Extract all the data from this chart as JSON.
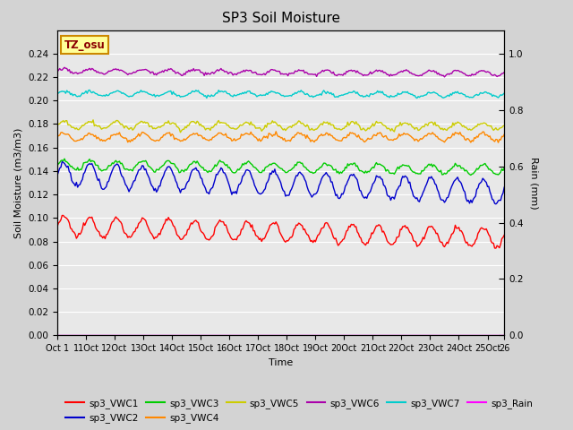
{
  "title": "SP3 Soil Moisture",
  "xlabel": "Time",
  "ylabel_left": "Soil Moisture (m3/m3)",
  "ylabel_right": "Rain (mm)",
  "num_points": 375,
  "ylim_left": [
    0.0,
    0.26
  ],
  "ylim_right": [
    0.0,
    1.0833
  ],
  "yticks_left": [
    0.0,
    0.02,
    0.04,
    0.06,
    0.08,
    0.1,
    0.12,
    0.14,
    0.16,
    0.18,
    0.2,
    0.22,
    0.24
  ],
  "yticks_right": [
    0.0,
    0.2,
    0.4,
    0.6,
    0.8,
    1.0
  ],
  "fig_bg_color": "#d3d3d3",
  "plot_bg_color": "#e8e8e8",
  "grid_color": "#ffffff",
  "annotation_text": "TZ_osu",
  "annotation_bg": "#ffff99",
  "annotation_border": "#cc8800",
  "series": {
    "sp3_VWC1": {
      "color": "#ff0000",
      "base": 0.093,
      "amplitude": 0.008,
      "trend": -0.01,
      "period": 22,
      "noise": 0.001
    },
    "sp3_VWC2": {
      "color": "#0000cc",
      "base": 0.137,
      "amplitude": 0.01,
      "trend": -0.015,
      "period": 22,
      "noise": 0.001
    },
    "sp3_VWC3": {
      "color": "#00cc00",
      "base": 0.145,
      "amplitude": 0.004,
      "trend": -0.004,
      "period": 22,
      "noise": 0.0008
    },
    "sp3_VWC4": {
      "color": "#ff8800",
      "base": 0.169,
      "amplitude": 0.003,
      "trend": 0.0,
      "period": 22,
      "noise": 0.0008
    },
    "sp3_VWC5": {
      "color": "#cccc00",
      "base": 0.179,
      "amplitude": 0.003,
      "trend": -0.001,
      "period": 22,
      "noise": 0.0008
    },
    "sp3_VWC6": {
      "color": "#aa00aa",
      "base": 0.225,
      "amplitude": 0.002,
      "trend": -0.002,
      "period": 22,
      "noise": 0.0006
    },
    "sp3_VWC7": {
      "color": "#00cccc",
      "base": 0.206,
      "amplitude": 0.002,
      "trend": -0.001,
      "period": 22,
      "noise": 0.0006
    },
    "sp3_Rain": {
      "color": "#ff00ff",
      "base": 0.0,
      "amplitude": 0.0,
      "trend": 0.0,
      "period": 1,
      "noise": 0.0
    }
  },
  "xtick_positions": [
    0,
    24,
    48,
    72,
    96,
    120,
    144,
    168,
    192,
    216,
    240,
    264,
    288,
    312,
    336,
    360,
    374
  ],
  "xtick_labels": [
    "Oct 1",
    "11Oct",
    "12Oct",
    "13Oct",
    "14Oct",
    "15Oct",
    "16Oct",
    "17Oct",
    "18Oct",
    "19Oct",
    "20Oct",
    "21Oct",
    "22Oct",
    "23Oct",
    "24Oct",
    "25Oct",
    "26"
  ],
  "legend_row1": [
    "sp3_VWC1",
    "sp3_VWC2",
    "sp3_VWC3",
    "sp3_VWC4",
    "sp3_VWC5",
    "sp3_VWC6"
  ],
  "legend_row2": [
    "sp3_VWC7",
    "sp3_Rain"
  ]
}
